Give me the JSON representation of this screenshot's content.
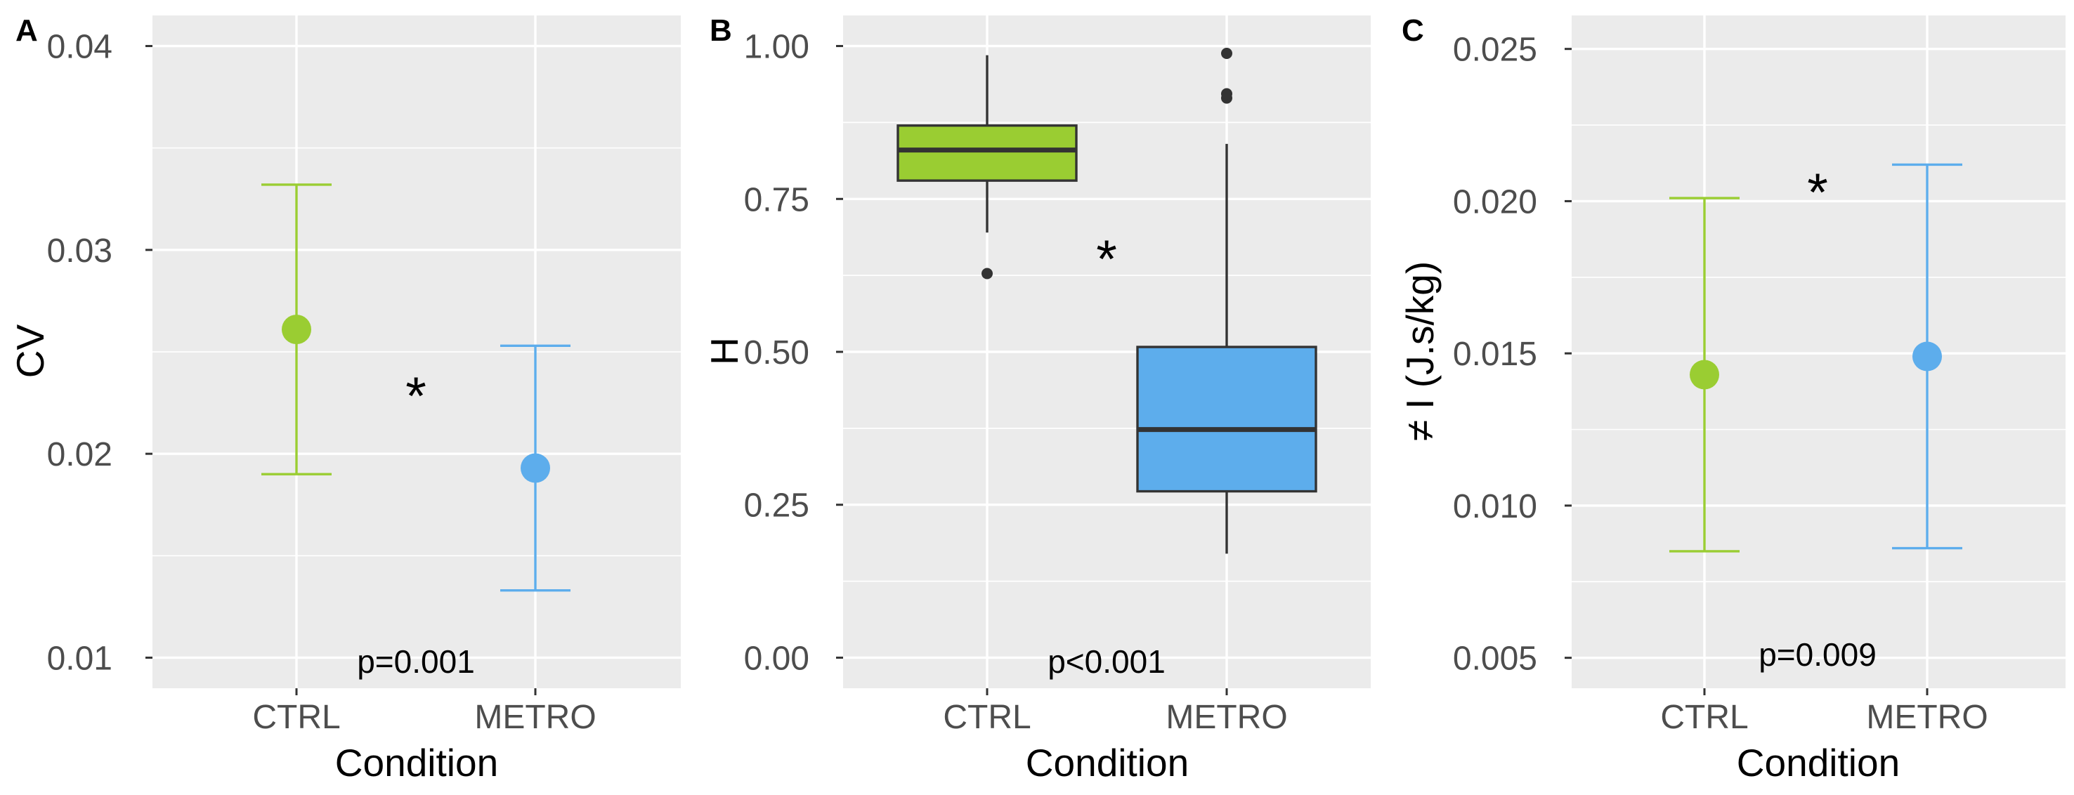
{
  "colors": {
    "CTRL": "#9ACD32",
    "METRO": "#5DADEC",
    "box_line": "#333333",
    "panel_bg": "#EBEBEB",
    "grid": "#FFFFFF"
  },
  "chart_data": [
    {
      "panel": "A",
      "type": "scatter",
      "subtype": "point with error bars",
      "categories": [
        "CTRL",
        "METRO"
      ],
      "points": [
        {
          "category": "CTRL",
          "y": 0.0261,
          "ymin": 0.019,
          "ymax": 0.0332
        },
        {
          "category": "METRO",
          "y": 0.0193,
          "ymin": 0.0133,
          "ymax": 0.0253
        }
      ],
      "xlabel": "Condition",
      "ylabel": "CV",
      "ylim": [
        0.0085,
        0.0415
      ],
      "yticks": [
        0.01,
        0.02,
        0.03,
        0.04
      ],
      "ytick_labels": [
        "0.01",
        "0.02",
        "0.03",
        "0.04"
      ],
      "annotations": {
        "star": "*",
        "p": "p=0.001"
      },
      "grid": true
    },
    {
      "panel": "B",
      "type": "box",
      "categories": [
        "CTRL",
        "METRO"
      ],
      "boxes": [
        {
          "category": "CTRL",
          "whisker_low": 0.695,
          "q1": 0.78,
          "median": 0.83,
          "q3": 0.87,
          "whisker_high": 0.985,
          "outliers": [
            0.628
          ]
        },
        {
          "category": "METRO",
          "whisker_low": 0.17,
          "q1": 0.272,
          "median": 0.373,
          "q3": 0.508,
          "whisker_high": 0.84,
          "outliers": [
            0.915,
            0.922,
            0.988
          ]
        }
      ],
      "xlabel": "Condition",
      "ylabel": "H",
      "ylim": [
        -0.05,
        1.05
      ],
      "yticks": [
        0,
        0.25,
        0.5,
        0.75,
        1
      ],
      "ytick_labels": [
        "0.00",
        "0.25",
        "0.50",
        "0.75",
        "1.00"
      ],
      "annotations": {
        "star": "*",
        "p": "p<0.001"
      },
      "grid": true
    },
    {
      "panel": "C",
      "type": "scatter",
      "subtype": "point with error bars",
      "categories": [
        "CTRL",
        "METRO"
      ],
      "points": [
        {
          "category": "CTRL",
          "y": 0.0143,
          "ymin": 0.0085,
          "ymax": 0.0201
        },
        {
          "category": "METRO",
          "y": 0.0149,
          "ymin": 0.0086,
          "ymax": 0.0212
        }
      ],
      "xlabel": "Condition",
      "ylabel": "≠ I (J.s/kg)",
      "ylim": [
        0.004,
        0.0261
      ],
      "yticks": [
        0.005,
        0.01,
        0.015,
        0.02,
        0.025
      ],
      "ytick_labels": [
        "0.005",
        "0.010",
        "0.015",
        "0.020",
        "0.025"
      ],
      "annotations": {
        "star": "*",
        "p": "p=0.009"
      },
      "grid": true
    }
  ]
}
